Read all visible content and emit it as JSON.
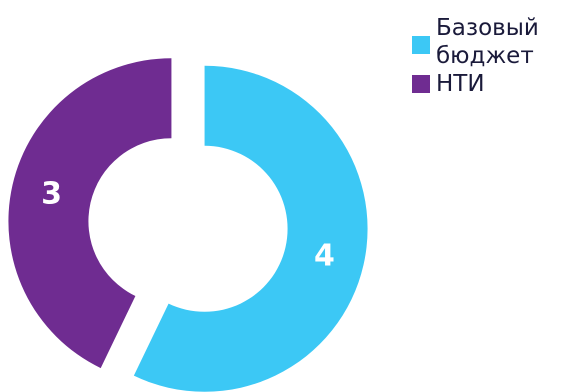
{
  "chart_data": {
    "type": "pie",
    "variant": "donut",
    "title": "",
    "series": [
      {
        "name": "Базовый бюджет",
        "value": 4,
        "label": "4",
        "color": "#3cc8f5"
      },
      {
        "name": "НТИ",
        "value": 3,
        "label": "3",
        "color": "#6f2c91"
      }
    ],
    "legend_position": "top-right",
    "data_label_color": "#ffffff",
    "exploded": true
  }
}
